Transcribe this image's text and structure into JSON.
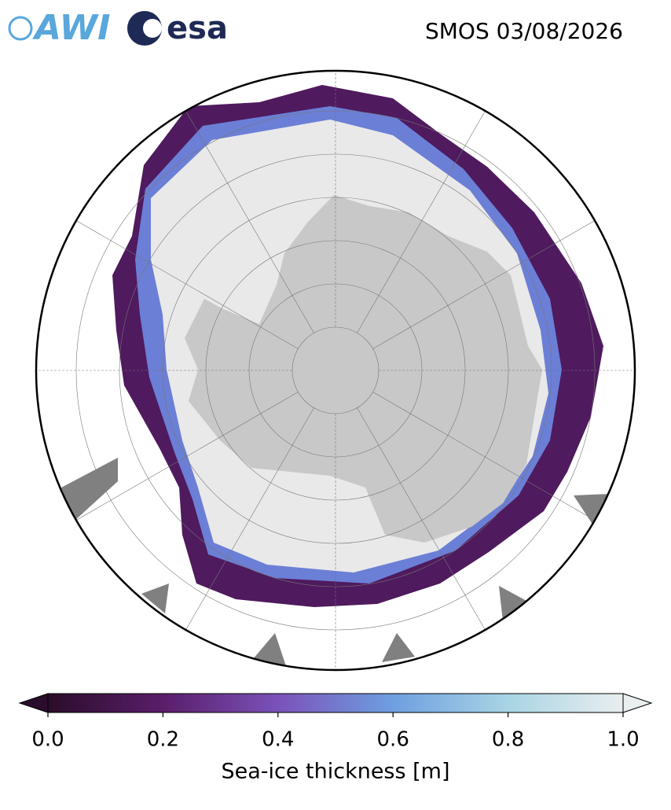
{
  "header": {
    "logos": [
      "AWI",
      "esa"
    ],
    "title": "SMOS 03/08/2026"
  },
  "colorbar": {
    "label": "Sea-ice thickness [m]",
    "lim": [
      0,
      1
    ],
    "ticks": [
      {
        "value": 0,
        "label": "0.0"
      },
      0.2,
      0.4,
      0.6,
      0.8,
      {
        "value": 1,
        "label": "1.0"
      }
    ],
    "colors": [
      "#2a0d2a",
      "#5a1d6a",
      "#7a52b9",
      "#6e9fe0",
      "#a9d4e4",
      "#e9eeee"
    ]
  }
}
